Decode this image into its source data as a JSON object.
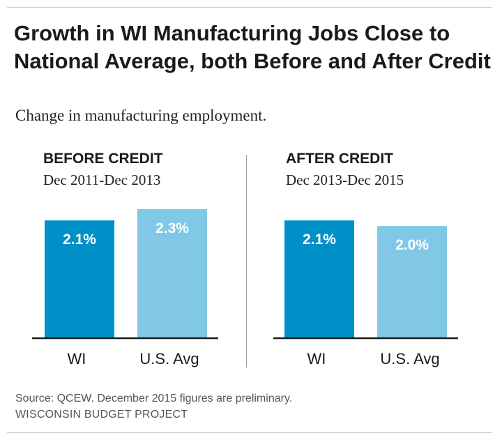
{
  "title": "Growth in WI Manufacturing Jobs Close to National Average, both Before and After Credit",
  "subtitle": "Change in manufacturing employment.",
  "source": "Source: QCEW. December 2015 figures are preliminary.",
  "organization": "WISCONSIN BUDGET PROJECT",
  "colors": {
    "wi": "#0090c8",
    "us": "#80c8e6",
    "axis": "#1a1a1a",
    "label": "#ffffff"
  },
  "chart_data": [
    {
      "type": "bar",
      "title": "BEFORE CREDIT",
      "subtitle": "Dec 2011-Dec 2013",
      "categories": [
        "WI",
        "U.S. Avg"
      ],
      "values": [
        2.1,
        2.3
      ],
      "labels": [
        "2.1%",
        "2.3%"
      ],
      "ylim": [
        0,
        2.3
      ],
      "grid": false
    },
    {
      "type": "bar",
      "title": "AFTER CREDIT",
      "subtitle": "Dec 2013-Dec 2015",
      "categories": [
        "WI",
        "U.S. Avg"
      ],
      "values": [
        2.1,
        2.0
      ],
      "labels": [
        "2.1%",
        "2.0%"
      ],
      "ylim": [
        0,
        2.3
      ],
      "grid": false
    }
  ]
}
